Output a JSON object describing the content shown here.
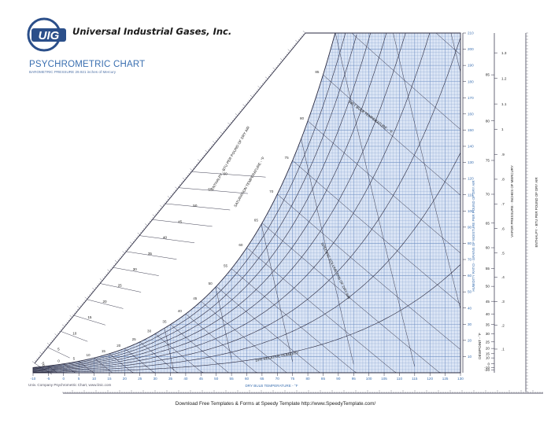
{
  "header": {
    "logo_text": "UIG",
    "company_name": "Universal Industrial Gases, Inc.",
    "title": "PSYCHROMETRIC CHART",
    "subtitle": "BAROMETRIC PRESSURE 29.921 inches of Mercury"
  },
  "footer": {
    "credit": "Univ. Company Psychrometric Chart, www.linic.com",
    "download_text": "Download Free Templates & Forms at Speedy Template http://www.SpeedyTemplate.com/"
  },
  "colors": {
    "grid": "#6f8fc4",
    "dark": "#2a2a40",
    "title": "#3a6fb0",
    "fill": "#dbe5f5"
  },
  "chart_data": {
    "type": "psychrometric",
    "x_axis": {
      "label": "DRY BULB TEMPERATURE - °F",
      "ticks": [
        -10,
        -5,
        0,
        5,
        10,
        15,
        20,
        25,
        30,
        35,
        40,
        45,
        50,
        55,
        60,
        65,
        70,
        75,
        80,
        85,
        90,
        95,
        100,
        105,
        110,
        115,
        120,
        125,
        130
      ],
      "range": [
        -10,
        130
      ]
    },
    "y_axis_right": {
      "label": "HUMIDITY RATIO - GRAINS OF MOISTURE PER POUND OF DRY AIR",
      "ticks": [
        10,
        20,
        30,
        40,
        50,
        60,
        70,
        80,
        90,
        100,
        110,
        120,
        130,
        140,
        150,
        160,
        170,
        180,
        190,
        200,
        210
      ],
      "range": [
        0,
        210
      ]
    },
    "dewpoint_scale": {
      "label": "DEWPOINT - °F",
      "ticks": [
        -20,
        -10,
        0,
        10,
        15,
        20,
        25,
        30,
        35,
        40,
        45,
        50,
        55,
        60,
        65,
        70,
        75,
        80,
        85,
        90
      ]
    },
    "vapor_pressure_scale": {
      "label": "VAPOR PRESSURE - INCHES OF MERCURY",
      "ticks": [
        ".1",
        ".2",
        ".3",
        ".4",
        ".5",
        ".6",
        ".7",
        ".8",
        ".9",
        "1",
        "1.1",
        "1.2",
        "1.3"
      ]
    },
    "enthalpy_scale_right": {
      "label": "ENTHALPY - BTU PER POUND OF DRY AIR"
    },
    "enthalpy_scale_left": {
      "label": "ENTHALPY - BTU PER POUND OF DRY AIR",
      "ticks": [
        0,
        5,
        10,
        15,
        20,
        25,
        30,
        35,
        40,
        45,
        50,
        55,
        60
      ]
    },
    "saturation_scale": {
      "label": "SATURATION TEMPERATURE - °F",
      "ticks": [
        -5,
        0,
        5,
        10,
        15,
        20,
        25,
        30,
        35,
        40,
        45,
        50,
        55,
        60,
        65,
        70,
        75,
        80,
        85,
        90
      ]
    },
    "relative_humidity_curves": [
      10,
      20,
      30,
      40,
      50,
      60,
      70,
      80,
      90
    ],
    "rh_label": "10% RELATIVE HUMIDITY",
    "wet_bulb_label": "WET BULB TEMPERATURE - °F",
    "specific_volume_label": "SPECIFIC VOLUME ft³/lb OF DRY AIR",
    "volume_lines": [
      12.5,
      13.0,
      13.5,
      14.0,
      14.5,
      15.0,
      15.5
    ]
  }
}
